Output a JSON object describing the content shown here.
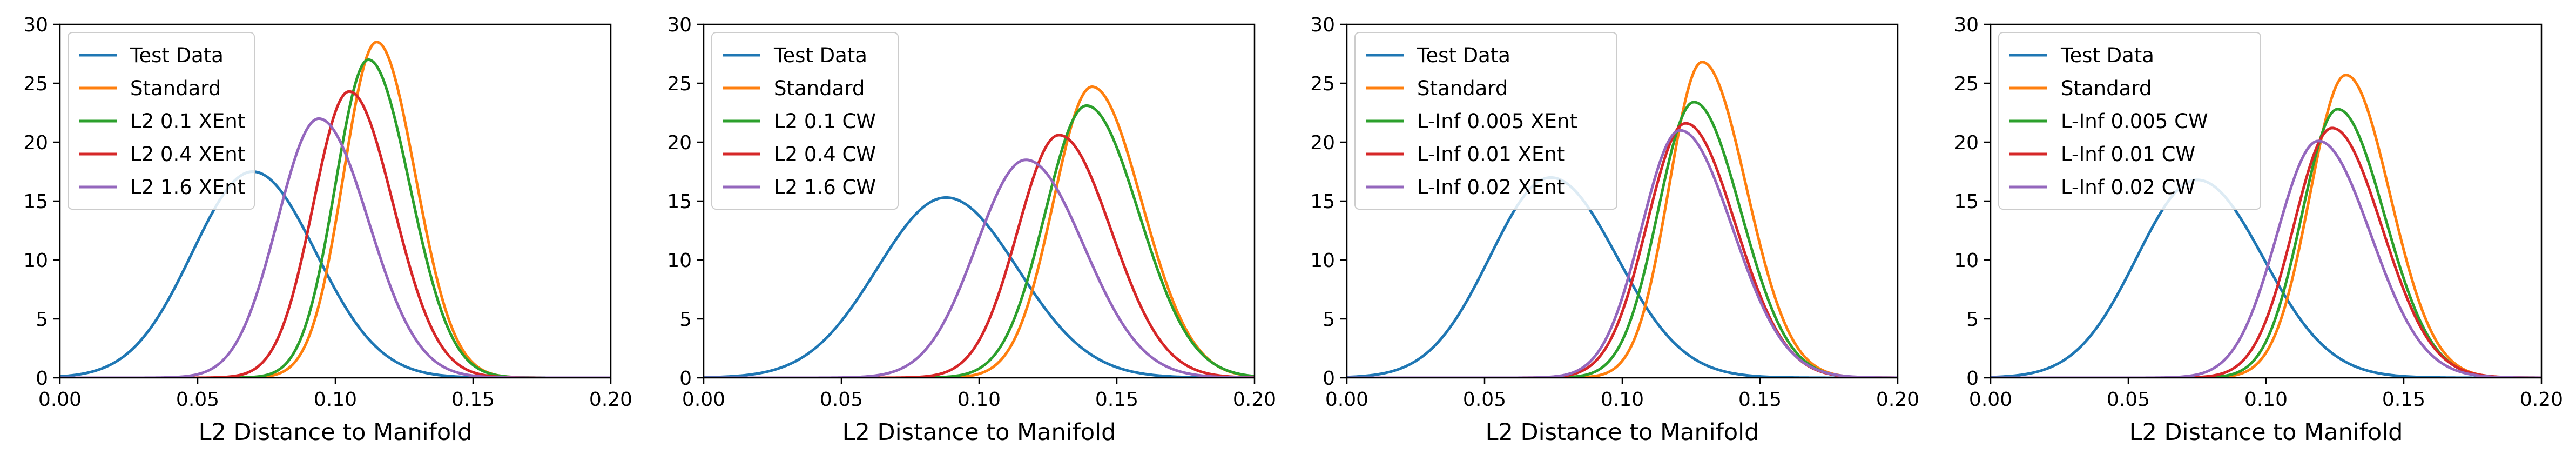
{
  "chart_data": [
    {
      "type": "line",
      "xlabel": "L2 Distance to Manifold",
      "ylabel": "",
      "xlim": [
        0.0,
        0.2
      ],
      "ylim": [
        0,
        30
      ],
      "xticks": [
        "0.00",
        "0.05",
        "0.10",
        "0.15",
        "0.20"
      ],
      "yticks": [
        "0",
        "5",
        "10",
        "15",
        "20",
        "25",
        "30"
      ],
      "legend_position": "top-left",
      "series": [
        {
          "name": "Test Data",
          "color": "#1f77b4",
          "peak_x": 0.07,
          "peak_y": 17.5,
          "sd_left": 0.022,
          "sd_right": 0.023
        },
        {
          "name": "Standard",
          "color": "#ff7f0e",
          "peak_x": 0.115,
          "peak_y": 28.5,
          "sd_left": 0.012,
          "sd_right": 0.014
        },
        {
          "name": "L2 0.1 XEnt",
          "color": "#2ca02c",
          "peak_x": 0.112,
          "peak_y": 27.0,
          "sd_left": 0.012,
          "sd_right": 0.015
        },
        {
          "name": "L2 0.4 XEnt",
          "color": "#d62728",
          "peak_x": 0.105,
          "peak_y": 24.3,
          "sd_left": 0.013,
          "sd_right": 0.016
        },
        {
          "name": "L2 1.6 XEnt",
          "color": "#9467bd",
          "peak_x": 0.094,
          "peak_y": 22.0,
          "sd_left": 0.015,
          "sd_right": 0.018
        }
      ]
    },
    {
      "type": "line",
      "xlabel": "L2 Distance to Manifold",
      "ylabel": "",
      "xlim": [
        0.0,
        0.2
      ],
      "ylim": [
        0,
        30
      ],
      "xticks": [
        "0.00",
        "0.05",
        "0.10",
        "0.15",
        "0.20"
      ],
      "yticks": [
        "0",
        "5",
        "10",
        "15",
        "20",
        "25",
        "30"
      ],
      "legend_position": "top-left",
      "series": [
        {
          "name": "Test Data",
          "color": "#1f77b4",
          "peak_x": 0.088,
          "peak_y": 15.3,
          "sd_left": 0.025,
          "sd_right": 0.026
        },
        {
          "name": "Standard",
          "color": "#ff7f0e",
          "peak_x": 0.141,
          "peak_y": 24.7,
          "sd_left": 0.014,
          "sd_right": 0.018
        },
        {
          "name": "L2 0.1 CW",
          "color": "#2ca02c",
          "peak_x": 0.139,
          "peak_y": 23.1,
          "sd_left": 0.015,
          "sd_right": 0.019
        },
        {
          "name": "L2 0.4 CW",
          "color": "#d62728",
          "peak_x": 0.129,
          "peak_y": 20.6,
          "sd_left": 0.015,
          "sd_right": 0.019
        },
        {
          "name": "L2 1.6 CW",
          "color": "#9467bd",
          "peak_x": 0.117,
          "peak_y": 18.5,
          "sd_left": 0.018,
          "sd_right": 0.021
        }
      ]
    },
    {
      "type": "line",
      "xlabel": "L2 Distance to Manifold",
      "ylabel": "",
      "xlim": [
        0.0,
        0.2
      ],
      "ylim": [
        0,
        30
      ],
      "xticks": [
        "0.00",
        "0.05",
        "0.10",
        "0.15",
        "0.20"
      ],
      "yticks": [
        "0",
        "5",
        "10",
        "15",
        "20",
        "25",
        "30"
      ],
      "legend_position": "top-left",
      "series": [
        {
          "name": "Test Data",
          "color": "#1f77b4",
          "peak_x": 0.074,
          "peak_y": 17.0,
          "sd_left": 0.022,
          "sd_right": 0.024
        },
        {
          "name": "Standard",
          "color": "#ff7f0e",
          "peak_x": 0.129,
          "peak_y": 26.8,
          "sd_left": 0.012,
          "sd_right": 0.016
        },
        {
          "name": "L-Inf 0.005 XEnt",
          "color": "#2ca02c",
          "peak_x": 0.126,
          "peak_y": 23.4,
          "sd_left": 0.013,
          "sd_right": 0.017
        },
        {
          "name": "L-Inf 0.01 XEnt",
          "color": "#d62728",
          "peak_x": 0.123,
          "peak_y": 21.6,
          "sd_left": 0.014,
          "sd_right": 0.018
        },
        {
          "name": "L-Inf 0.02 XEnt",
          "color": "#9467bd",
          "peak_x": 0.121,
          "peak_y": 21.0,
          "sd_left": 0.014,
          "sd_right": 0.019
        }
      ]
    },
    {
      "type": "line",
      "xlabel": "L2 Distance to Manifold",
      "ylabel": "",
      "xlim": [
        0.0,
        0.2
      ],
      "ylim": [
        0,
        30
      ],
      "xticks": [
        "0.00",
        "0.05",
        "0.10",
        "0.15",
        "0.20"
      ],
      "yticks": [
        "0",
        "5",
        "10",
        "15",
        "20",
        "25",
        "30"
      ],
      "legend_position": "top-left",
      "series": [
        {
          "name": "Test Data",
          "color": "#1f77b4",
          "peak_x": 0.075,
          "peak_y": 16.8,
          "sd_left": 0.022,
          "sd_right": 0.024
        },
        {
          "name": "Standard",
          "color": "#ff7f0e",
          "peak_x": 0.129,
          "peak_y": 25.7,
          "sd_left": 0.013,
          "sd_right": 0.016
        },
        {
          "name": "L-Inf 0.005 CW",
          "color": "#2ca02c",
          "peak_x": 0.126,
          "peak_y": 22.8,
          "sd_left": 0.013,
          "sd_right": 0.017
        },
        {
          "name": "L-Inf 0.01 CW",
          "color": "#d62728",
          "peak_x": 0.124,
          "peak_y": 21.2,
          "sd_left": 0.014,
          "sd_right": 0.018
        },
        {
          "name": "L-Inf 0.02 CW",
          "color": "#9467bd",
          "peak_x": 0.119,
          "peak_y": 20.1,
          "sd_left": 0.015,
          "sd_right": 0.019
        }
      ]
    }
  ]
}
